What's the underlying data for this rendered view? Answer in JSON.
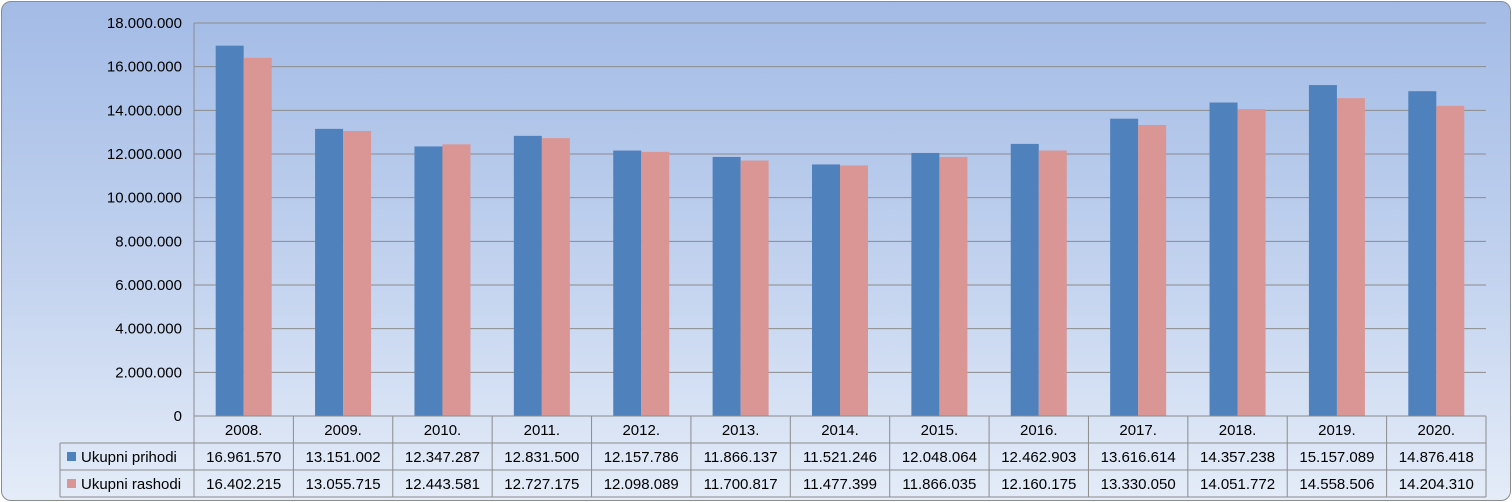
{
  "chart_data": {
    "type": "bar",
    "title": "",
    "xlabel": "",
    "ylabel": "",
    "ylim": [
      0,
      18000000
    ],
    "yticks": [
      "0",
      "2.000.000",
      "4.000.000",
      "6.000.000",
      "8.000.000",
      "10.000.000",
      "12.000.000",
      "14.000.000",
      "16.000.000",
      "18.000.000"
    ],
    "grid": true,
    "legend": "table-below",
    "categories": [
      "2008.",
      "2009.",
      "2010.",
      "2011.",
      "2012.",
      "2013.",
      "2014.",
      "2015.",
      "2016.",
      "2017.",
      "2018.",
      "2019.",
      "2020."
    ],
    "series": [
      {
        "name": "Ukupni prihodi",
        "color": "#4f81bd",
        "values": [
          16961570,
          13151002,
          12347287,
          12831500,
          12157786,
          11866137,
          11521246,
          12048064,
          12462903,
          13616614,
          14357238,
          15157089,
          14876418
        ],
        "labels": [
          "16.961.570",
          "13.151.002",
          "12.347.287",
          "12.831.500",
          "12.157.786",
          "11.866.137",
          "11.521.246",
          "12.048.064",
          "12.462.903",
          "13.616.614",
          "14.357.238",
          "15.157.089",
          "14.876.418"
        ]
      },
      {
        "name": "Ukupni rashodi",
        "color": "#d99694",
        "values": [
          16402215,
          13055715,
          12443581,
          12727175,
          12098089,
          11700817,
          11477399,
          11866035,
          12160175,
          13330050,
          14051772,
          14558506,
          14204310
        ],
        "labels": [
          "16.402.215",
          "13.055.715",
          "12.443.581",
          "12.727.175",
          "12.098.089",
          "11.700.817",
          "11.477.399",
          "11.866.035",
          "12.160.175",
          "13.330.050",
          "14.051.772",
          "14.558.506",
          "14.204.310"
        ]
      }
    ]
  }
}
